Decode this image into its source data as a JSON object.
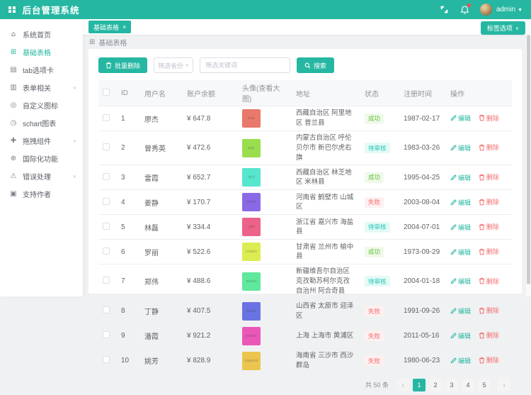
{
  "header": {
    "title": "后台管理系统",
    "username": "admin"
  },
  "sidebar": {
    "items": [
      {
        "label": "系统首页",
        "icon": "home-icon",
        "active": false,
        "chevron": false
      },
      {
        "label": "基础表格",
        "icon": "table-icon",
        "active": true,
        "chevron": false
      },
      {
        "label": "tab选项卡",
        "icon": "tabs-icon",
        "active": false,
        "chevron": false
      },
      {
        "label": "表单相关",
        "icon": "form-icon",
        "active": false,
        "chevron": true
      },
      {
        "label": "自定义图标",
        "icon": "custom-icon",
        "active": false,
        "chevron": false
      },
      {
        "label": "schart图表",
        "icon": "chart-icon",
        "active": false,
        "chevron": false
      },
      {
        "label": "拖拽组件",
        "icon": "drag-icon",
        "active": false,
        "chevron": true
      },
      {
        "label": "国际化功能",
        "icon": "globe-icon",
        "active": false,
        "chevron": false
      },
      {
        "label": "错误处理",
        "icon": "warning-icon",
        "active": false,
        "chevron": true
      },
      {
        "label": "支持作者",
        "icon": "book-icon",
        "active": false,
        "chevron": false
      }
    ]
  },
  "tabs": {
    "active_tab": "基础表格",
    "close_glyph": "×",
    "options_button": "标签选项"
  },
  "breadcrumb": {
    "label": "基础表格"
  },
  "toolbar": {
    "batch_delete_label": "批量删除",
    "province_placeholder": "筛选省份",
    "keyword_placeholder": "筛选关键词",
    "search_label": "搜索"
  },
  "table": {
    "headers": {
      "id": "ID",
      "name": "用户名",
      "balance": "账户余额",
      "avatar": "头像(查看大图)",
      "address": "地址",
      "status": "状态",
      "date": "注册时间",
      "ops": "操作"
    },
    "ops": {
      "edit": "编辑",
      "delete": "删除"
    },
    "rows": [
      {
        "id": "1",
        "name": "廖杰",
        "balance": "¥ 647.8",
        "avatar_color": "#e8796b",
        "avatar_text": "ectu",
        "address": "西藏自治区 阿里地区 普兰县",
        "status": "成功",
        "status_type": "success",
        "date": "1987-02-17"
      },
      {
        "id": "2",
        "name": "曾秀英",
        "balance": "¥ 472.6",
        "avatar_color": "#9ade4d",
        "avatar_text": "gxgr",
        "address": "内蒙古自治区 呼伦贝尔市 新巴尔虎右旗",
        "status": "待审核",
        "status_type": "pending",
        "date": "1983-03-26"
      },
      {
        "id": "3",
        "name": "雷霞",
        "balance": "¥ 652.7",
        "avatar_color": "#57e6ce",
        "avatar_text": "hjch",
        "address": "西藏自治区 林芝地区 米林县",
        "status": "成功",
        "status_type": "success",
        "date": "1995-04-25"
      },
      {
        "id": "4",
        "name": "姜静",
        "balance": "¥ 170.7",
        "avatar_color": "#8a69e6",
        "avatar_text": "afeap",
        "address": "河南省 鹤壁市 山城区",
        "status": "失败",
        "status_type": "fail",
        "date": "2003-08-04"
      },
      {
        "id": "5",
        "name": "林磊",
        "balance": "¥ 334.4",
        "avatar_color": "#ed6288",
        "avatar_text": "cgfh",
        "address": "浙江省 嘉兴市 海盐县",
        "status": "待审核",
        "status_type": "pending",
        "date": "2004-07-01"
      },
      {
        "id": "6",
        "name": "罗丽",
        "balance": "¥ 522.6",
        "avatar_color": "#dcec53",
        "avatar_text": "xmjdov",
        "address": "甘肃省 兰州市 榆中县",
        "status": "成功",
        "status_type": "success",
        "date": "1973-09-29"
      },
      {
        "id": "7",
        "name": "郑伟",
        "balance": "¥ 488.6",
        "avatar_color": "#60e89c",
        "avatar_text": "mehcu",
        "address": "新疆维吾尔自治区 克孜勒苏柯尔克孜自治州 阿合奇县",
        "status": "待审核",
        "status_type": "pending",
        "date": "2004-01-18"
      },
      {
        "id": "8",
        "name": "丁静",
        "balance": "¥ 407.5",
        "avatar_color": "#6a73e3",
        "avatar_text": "thakeb",
        "address": "山西省 太原市 迎泽区",
        "status": "失败",
        "status_type": "fail",
        "date": "1991-09-26"
      },
      {
        "id": "9",
        "name": "潘霞",
        "balance": "¥ 921.2",
        "avatar_color": "#eb57b7",
        "avatar_text": "begvek",
        "address": "上海 上海市 黄浦区",
        "status": "失败",
        "status_type": "fail",
        "date": "2011-05-16"
      },
      {
        "id": "10",
        "name": "姚芳",
        "balance": "¥ 828.9",
        "avatar_color": "#ebc54e",
        "avatar_text": "mgetyek",
        "address": "海南省 三沙市 西沙群岛",
        "status": "失败",
        "status_type": "fail",
        "date": "1980-06-23"
      }
    ]
  },
  "pagination": {
    "total_label": "共 50 条",
    "prev_glyph": "‹",
    "next_glyph": "›",
    "pages": [
      "1",
      "2",
      "3",
      "4",
      "5"
    ],
    "active_page": "1"
  },
  "colors": {
    "accent_teal": "#26b7a2",
    "danger_red": "#f56c6c",
    "success_green": "#67c23a",
    "pending_teal": "#26c6b4"
  }
}
